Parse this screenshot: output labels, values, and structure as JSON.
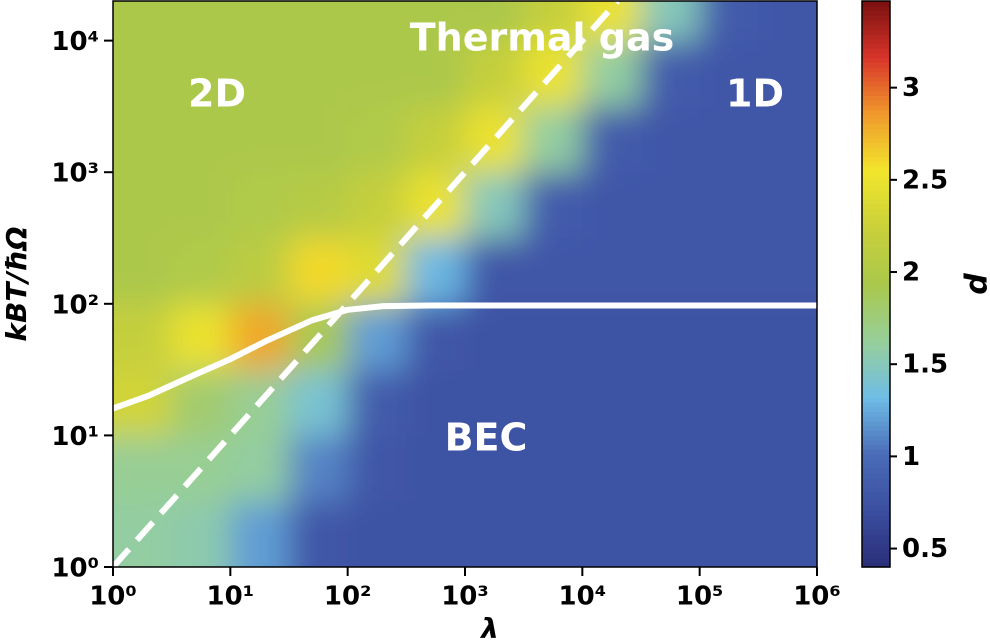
{
  "chart_data": {
    "type": "heatmap",
    "xlabel": "λ",
    "ylabel": "kBT/ħΩ",
    "log_x": true,
    "log_y": true,
    "xlim": [
      1,
      1000000
    ],
    "ylim": [
      1,
      20000
    ],
    "xticks": [
      {
        "value": 1,
        "label": "10⁰"
      },
      {
        "value": 10,
        "label": "10¹"
      },
      {
        "value": 100,
        "label": "10²"
      },
      {
        "value": 1000,
        "label": "10³"
      },
      {
        "value": 10000,
        "label": "10⁴"
      },
      {
        "value": 100000,
        "label": "10⁵"
      },
      {
        "value": 1000000,
        "label": "10⁶"
      }
    ],
    "yticks": [
      {
        "value": 1,
        "label": "10⁰"
      },
      {
        "value": 10,
        "label": "10¹"
      },
      {
        "value": 100,
        "label": "10²"
      },
      {
        "value": 1000,
        "label": "10³"
      },
      {
        "value": 10000,
        "label": "10⁴"
      }
    ],
    "x_edges": [
      1,
      3.16,
      10,
      31.6,
      100,
      316,
      1000,
      3160,
      10000,
      31600,
      100000,
      316000,
      1000000
    ],
    "y_edges": [
      1,
      3.16,
      10,
      31.6,
      100,
      316,
      1000,
      3160,
      10000,
      20000
    ],
    "z": [
      [
        1.6,
        1.55,
        1.2,
        0.8,
        0.75,
        0.75,
        0.75,
        0.75,
        0.75,
        0.75,
        0.75,
        0.75
      ],
      [
        1.65,
        1.65,
        1.6,
        1.1,
        0.8,
        0.75,
        0.75,
        0.75,
        0.75,
        0.75,
        0.75,
        0.75
      ],
      [
        2.3,
        1.8,
        1.65,
        1.4,
        0.85,
        0.75,
        0.75,
        0.75,
        0.75,
        0.75,
        0.75,
        0.75
      ],
      [
        2.2,
        2.5,
        2.8,
        1.9,
        1.2,
        0.8,
        0.75,
        0.75,
        0.75,
        0.75,
        0.75,
        0.75
      ],
      [
        1.95,
        2.0,
        2.1,
        2.6,
        2.4,
        1.3,
        0.8,
        0.8,
        0.8,
        0.8,
        0.8,
        0.8
      ],
      [
        1.95,
        1.95,
        2.0,
        2.05,
        2.2,
        2.5,
        1.5,
        0.85,
        0.8,
        0.8,
        0.8,
        0.8
      ],
      [
        1.95,
        1.95,
        1.95,
        1.95,
        2.0,
        2.2,
        2.5,
        1.6,
        0.85,
        0.8,
        0.8,
        0.8
      ],
      [
        1.95,
        1.95,
        1.95,
        1.95,
        1.95,
        1.95,
        2.2,
        2.5,
        1.6,
        0.85,
        0.8,
        0.8
      ],
      [
        1.95,
        1.95,
        1.95,
        1.95,
        1.95,
        1.95,
        1.95,
        2.2,
        2.5,
        1.5,
        0.85,
        0.8
      ]
    ],
    "colorbar": {
      "label": "d",
      "lim": [
        0.4,
        3.47
      ],
      "ticks": [
        0.5,
        1.0,
        1.5,
        2.0,
        2.5,
        3.0
      ],
      "colors": [
        "#2a2e78",
        "#3b4ea0",
        "#4a6cb8",
        "#6fbde6",
        "#97cf9a",
        "#aac84c",
        "#c9d03a",
        "#f2e62c",
        "#f09a2c",
        "#d8352a",
        "#7a1010"
      ]
    },
    "series": [
      {
        "x": [
          1,
          20000
        ],
        "values": [
          1,
          20000
        ],
        "color": "#ffffff",
        "dashed": true
      },
      {
        "x": [
          1,
          2,
          5,
          10,
          20,
          50,
          100,
          200,
          500,
          1000000
        ],
        "values": [
          16,
          20,
          29,
          38,
          52,
          75,
          90,
          96,
          97,
          97
        ],
        "color": "#ffffff",
        "dashed": false
      }
    ],
    "annotations": [
      "Thermal gas",
      "2D",
      "1D",
      "BEC"
    ]
  }
}
